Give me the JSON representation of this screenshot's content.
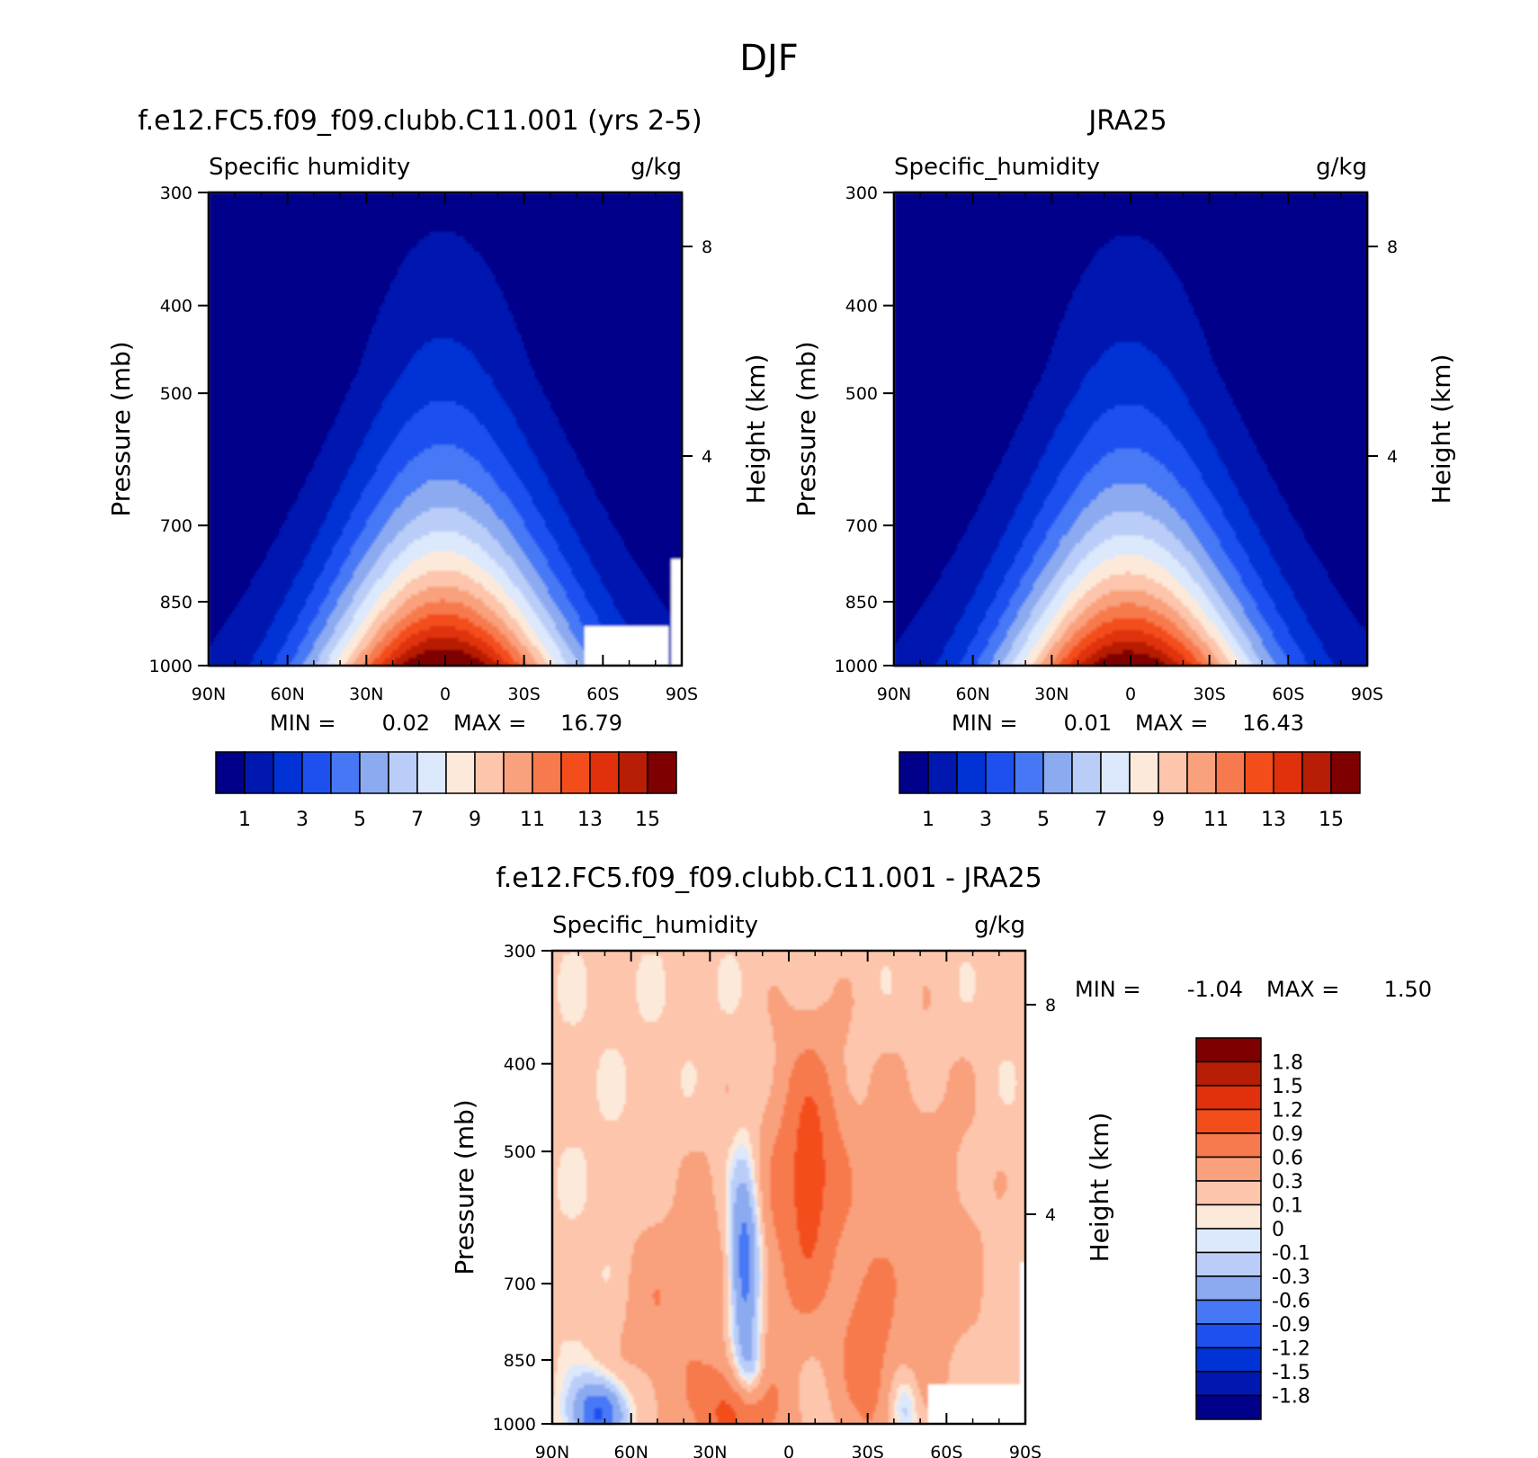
{
  "suptitle": "DJF",
  "colors": {
    "model_obs": [
      "#00008b",
      "#0018b0",
      "#0032d5",
      "#1e50f0",
      "#4678f5",
      "#8caaf0",
      "#b9cdf8",
      "#dce8fc",
      "#fde9d9",
      "#fcc5ac",
      "#f9a07c",
      "#f77a4e",
      "#f44d1c",
      "#e0300c",
      "#b81d05",
      "#7f0000"
    ],
    "diff": [
      "#00008b",
      "#0018b0",
      "#0032d5",
      "#1e50f0",
      "#4678f5",
      "#8caaf0",
      "#b9cdf8",
      "#dce8fc",
      "#fde9d9",
      "#fcc5ac",
      "#f9a07c",
      "#f77a4e",
      "#f44d1c",
      "#e0300c",
      "#b81d05",
      "#7f0000"
    ]
  },
  "chart_data": [
    {
      "type": "heatmap",
      "panel": "model",
      "title": "f.e12.FC5.f09_f09.clubb.C11.001 (yrs 2-5)",
      "variable": "Specific humidity",
      "units": "g/kg",
      "ylabel": "Pressure (mb)",
      "ylabel_right": "Height (km)",
      "x_ticks": [
        "90N",
        "60N",
        "30N",
        "0",
        "30S",
        "60S",
        "90S"
      ],
      "x_lat": [
        90,
        60,
        30,
        0,
        -30,
        -60,
        -90
      ],
      "y_ticks": [
        300,
        400,
        500,
        700,
        850,
        1000
      ],
      "y_ticks_right": [
        8,
        4
      ],
      "ylim": [
        1000,
        300
      ],
      "min_label": "MIN =",
      "min_value": "0.02",
      "max_label": "MAX =",
      "max_value": "16.79",
      "levels": [
        1,
        2,
        3,
        4,
        5,
        6,
        7,
        8,
        9,
        10,
        11,
        12,
        13,
        14,
        15
      ],
      "colorbar_labels": [
        "1",
        "3",
        "5",
        "7",
        "9",
        "11",
        "13",
        "15"
      ],
      "peak_value": 16.79,
      "peak_lat": 0,
      "missing_region": "surface, 53S-85S"
    },
    {
      "type": "heatmap",
      "panel": "obs",
      "title": "JRA25",
      "variable": "Specific_humidity",
      "units": "g/kg",
      "ylabel": "Pressure (mb)",
      "ylabel_right": "Height (km)",
      "x_ticks": [
        "90N",
        "60N",
        "30N",
        "0",
        "30S",
        "60S",
        "90S"
      ],
      "x_lat": [
        90,
        60,
        30,
        0,
        -30,
        -60,
        -90
      ],
      "y_ticks": [
        300,
        400,
        500,
        700,
        850,
        1000
      ],
      "y_ticks_right": [
        8,
        4
      ],
      "ylim": [
        1000,
        300
      ],
      "min_label": "MIN =",
      "min_value": "0.01",
      "max_label": "MAX =",
      "max_value": "16.43",
      "levels": [
        1,
        2,
        3,
        4,
        5,
        6,
        7,
        8,
        9,
        10,
        11,
        12,
        13,
        14,
        15
      ],
      "colorbar_labels": [
        "1",
        "3",
        "5",
        "7",
        "9",
        "11",
        "13",
        "15"
      ],
      "peak_value": 16.43,
      "peak_lat": 0
    },
    {
      "type": "heatmap",
      "panel": "diff",
      "title": "f.e12.FC5.f09_f09.clubb.C11.001 - JRA25",
      "variable": "Specific_humidity",
      "units": "g/kg",
      "ylabel": "Pressure (mb)",
      "ylabel_right": "Height (km)",
      "x_ticks": [
        "90N",
        "60N",
        "30N",
        "0",
        "30S",
        "60S",
        "90S"
      ],
      "x_lat": [
        90,
        60,
        30,
        0,
        -30,
        -60,
        -90
      ],
      "y_ticks": [
        300,
        400,
        500,
        700,
        850,
        1000
      ],
      "y_ticks_right": [
        8,
        4
      ],
      "ylim": [
        1000,
        300
      ],
      "min_label": "MIN =",
      "min_value": "-1.04",
      "max_label": "MAX =",
      "max_value": "1.50",
      "levels": [
        -1.8,
        -1.5,
        -1.2,
        -0.9,
        -0.6,
        -0.3,
        -0.1,
        0,
        0.1,
        0.3,
        0.6,
        0.9,
        1.2,
        1.5,
        1.8
      ],
      "colorbar_labels": [
        "1.8",
        "1.5",
        "1.2",
        "0.9",
        "0.6",
        "0.3",
        "0.1",
        "0",
        "-0.1",
        "-0.3",
        "-0.6",
        "-0.9",
        "-1.2",
        "-1.5",
        "-1.8"
      ],
      "missing_region": "surface, 53S-90S"
    }
  ]
}
